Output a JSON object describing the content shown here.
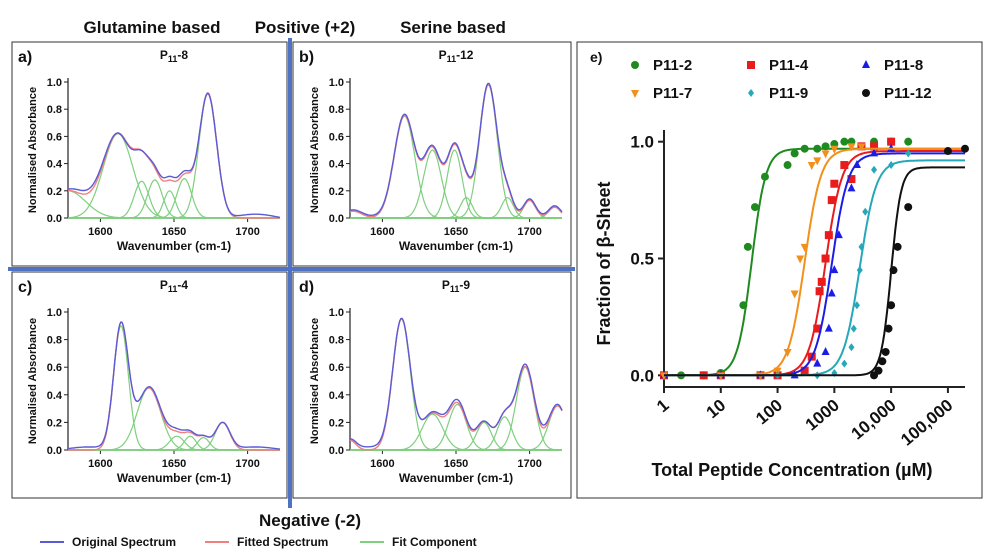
{
  "headers": {
    "glutamine": "Glutamine based",
    "positive": "Positive (+2)",
    "serine": "Serine based",
    "negative": "Negative (-2)"
  },
  "legend": {
    "original": "Original Spectrum",
    "fitted": "Fitted Spectrum",
    "component": "Fit Component"
  },
  "colors": {
    "original": "#5b5bd6",
    "fitted": "#f08080",
    "component": "#7ed07e",
    "divider": "#4f72c4"
  },
  "chart_data": [
    {
      "id": "a",
      "panel_label": "a)",
      "title_main": "P",
      "title_sub": "11",
      "title_suffix": "-8",
      "type": "line",
      "xlabel": "Wavenumber (cm-1)",
      "ylabel": "Normalised Absorbance",
      "xlim": [
        1578,
        1722
      ],
      "ylim": [
        0,
        1.0
      ],
      "xticks": [
        1600,
        1650,
        1700
      ],
      "yticks": [
        0.0,
        0.2,
        0.4,
        0.6,
        0.8,
        1.0
      ],
      "components": [
        [
          1578,
          0.2,
          12
        ],
        [
          1612,
          0.62,
          10
        ],
        [
          1628,
          0.27,
          5
        ],
        [
          1637,
          0.28,
          5
        ],
        [
          1647,
          0.2,
          4
        ],
        [
          1657,
          0.29,
          5
        ],
        [
          1673,
          0.92,
          6
        ]
      ],
      "original_offset": 0.03
    },
    {
      "id": "b",
      "panel_label": "b)",
      "title_main": "P",
      "title_sub": "11",
      "title_suffix": "-12",
      "type": "line",
      "xlabel": "Wavenumber (cm-1)",
      "ylabel": "Normalised Absorbance",
      "xlim": [
        1578,
        1722
      ],
      "ylim": [
        0,
        1.0
      ],
      "xticks": [
        1600,
        1650,
        1700
      ],
      "yticks": [
        0.0,
        0.2,
        0.4,
        0.6,
        0.8,
        1.0
      ],
      "components": [
        [
          1580,
          0.05,
          6
        ],
        [
          1615,
          0.75,
          7
        ],
        [
          1634,
          0.5,
          6
        ],
        [
          1649,
          0.5,
          5
        ],
        [
          1657,
          0.15,
          4
        ],
        [
          1672,
          0.98,
          6
        ],
        [
          1685,
          0.15,
          4
        ],
        [
          1700,
          0.13,
          4
        ],
        [
          1717,
          0.08,
          4
        ]
      ],
      "original_offset": 0.0
    },
    {
      "id": "c",
      "panel_label": "c)",
      "title_main": "P",
      "title_sub": "11",
      "title_suffix": "-4",
      "type": "line",
      "xlabel": "Wavenumber (cm-1)",
      "ylabel": "Normalised Absorbance",
      "xlim": [
        1578,
        1722
      ],
      "ylim": [
        0,
        1.0
      ],
      "xticks": [
        1600,
        1650,
        1700
      ],
      "yticks": [
        0.0,
        0.2,
        0.4,
        0.6,
        0.8,
        1.0
      ],
      "components": [
        [
          1614,
          0.9,
          5
        ],
        [
          1633,
          0.45,
          8
        ],
        [
          1652,
          0.1,
          5
        ],
        [
          1661,
          0.1,
          4
        ],
        [
          1670,
          0.09,
          4
        ],
        [
          1683,
          0.2,
          5
        ]
      ],
      "original_offset": 0.02
    },
    {
      "id": "d",
      "panel_label": "d)",
      "title_main": "P",
      "title_sub": "11",
      "title_suffix": "-9",
      "type": "line",
      "xlabel": "Wavenumber (cm-1)",
      "ylabel": "Normalised Absorbance",
      "xlim": [
        1578,
        1722
      ],
      "ylim": [
        0,
        1.0
      ],
      "xticks": [
        1600,
        1650,
        1700
      ],
      "yticks": [
        0.0,
        0.2,
        0.4,
        0.6,
        0.8,
        1.0
      ],
      "components": [
        [
          1578,
          0.07,
          4
        ],
        [
          1613,
          0.95,
          6
        ],
        [
          1634,
          0.26,
          7
        ],
        [
          1651,
          0.33,
          6
        ],
        [
          1669,
          0.2,
          5
        ],
        [
          1683,
          0.24,
          5
        ],
        [
          1697,
          0.6,
          6
        ],
        [
          1719,
          0.32,
          6
        ]
      ],
      "original_offset": 0.02
    },
    {
      "id": "e",
      "panel_label": "e)",
      "type": "scatter",
      "xlabel": "Total Peptide Concentration (µM)",
      "ylabel": "Fraction of β-Sheet",
      "xscale": "log",
      "xlim": [
        1,
        200000
      ],
      "ylim": [
        -0.05,
        1.05
      ],
      "xticks": [
        1,
        10,
        100,
        1000,
        10000,
        100000
      ],
      "xticklabels": [
        "1",
        "10",
        "100",
        "1000",
        "10,000",
        "100,000"
      ],
      "yticks": [
        0.0,
        0.5,
        1.0
      ],
      "yticklabels": [
        "0.0",
        "0.5",
        "1.0"
      ],
      "series": [
        {
          "name": "P11-2",
          "color": "#1f8a1f",
          "marker": "circle",
          "ec50": 35,
          "hill": 3.5,
          "top": 0.97,
          "x": [
            1,
            2,
            5,
            10,
            25,
            30,
            40,
            60,
            150,
            200,
            300,
            500,
            700,
            1000,
            1500,
            2000,
            5000,
            10000,
            20000
          ],
          "y": [
            0,
            0,
            0,
            0.01,
            0.3,
            0.55,
            0.72,
            0.85,
            0.9,
            0.95,
            0.97,
            0.97,
            0.98,
            0.99,
            1.0,
            1.0,
            1.0,
            1.0,
            1.0
          ]
        },
        {
          "name": "P11-4",
          "color": "#e81c1c",
          "marker": "square",
          "ec50": 700,
          "hill": 3.0,
          "top": 0.96,
          "x": [
            1,
            5,
            10,
            50,
            100,
            300,
            400,
            500,
            550,
            600,
            700,
            800,
            900,
            1000,
            1500,
            2000,
            3000,
            5000,
            10000
          ],
          "y": [
            0,
            0,
            0,
            0,
            0,
            0.02,
            0.08,
            0.2,
            0.36,
            0.4,
            0.5,
            0.6,
            0.75,
            0.82,
            0.9,
            0.84,
            0.98,
            0.98,
            1.0
          ]
        },
        {
          "name": "P11-8",
          "color": "#1c1ce8",
          "marker": "triangle-up",
          "ec50": 900,
          "hill": 3.0,
          "top": 0.95,
          "x": [
            1,
            10,
            50,
            200,
            500,
            700,
            800,
            900,
            1000,
            1200,
            2000,
            2500,
            5000,
            10000
          ],
          "y": [
            0,
            0,
            0,
            0,
            0.05,
            0.1,
            0.2,
            0.35,
            0.45,
            0.6,
            0.8,
            0.9,
            0.95,
            0.97
          ]
        },
        {
          "name": "P11-7",
          "color": "#f2901c",
          "marker": "triangle-down",
          "ec50": 300,
          "hill": 3.0,
          "top": 0.97,
          "x": [
            1,
            10,
            50,
            100,
            150,
            200,
            250,
            300,
            400,
            500,
            700,
            1000,
            2000,
            3000
          ],
          "y": [
            0,
            0,
            0,
            0.02,
            0.1,
            0.35,
            0.5,
            0.55,
            0.9,
            0.92,
            0.95,
            0.97,
            0.98,
            0.98
          ]
        },
        {
          "name": "P11-9",
          "color": "#26a8b8",
          "marker": "diamond",
          "ec50": 2800,
          "hill": 3.0,
          "top": 0.92,
          "x": [
            100,
            500,
            1000,
            1500,
            2000,
            2200,
            2500,
            2800,
            3000,
            3500,
            5000,
            10000,
            20000
          ],
          "y": [
            0,
            0,
            0.01,
            0.05,
            0.12,
            0.2,
            0.3,
            0.45,
            0.55,
            0.7,
            0.88,
            0.9,
            0.95
          ]
        },
        {
          "name": "P11-12",
          "color": "#111111",
          "marker": "circle",
          "ec50": 10000,
          "hill": 5.0,
          "top": 0.89,
          "x": [
            5000,
            6000,
            7000,
            8000,
            9000,
            10000,
            11000,
            13000,
            20000,
            100000,
            200000
          ],
          "y": [
            0,
            0.02,
            0.06,
            0.1,
            0.2,
            0.3,
            0.45,
            0.55,
            0.72,
            0.96,
            0.97
          ]
        }
      ]
    }
  ]
}
